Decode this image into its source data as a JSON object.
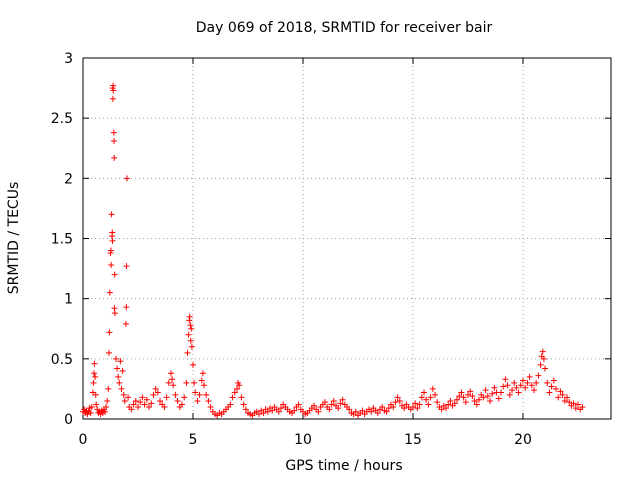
{
  "chart_data": {
    "type": "scatter",
    "title": "Day 069 of 2018, SRMTID for receiver bair",
    "xlabel": "GPS time / hours",
    "ylabel": "SRMTID / TECUs",
    "xlim": [
      0,
      24
    ],
    "ylim": [
      0,
      3
    ],
    "xticks": [
      0,
      5,
      10,
      15,
      20
    ],
    "yticks": [
      0,
      0.5,
      1,
      1.5,
      2,
      2.5,
      3
    ],
    "grid": true,
    "marker": "+",
    "color": "#ff0000",
    "series": [
      {
        "name": "SRMTID",
        "points": [
          [
            0.0,
            0.06
          ],
          [
            0.05,
            0.08
          ],
          [
            0.1,
            0.05
          ],
          [
            0.15,
            0.07
          ],
          [
            0.2,
            0.04
          ],
          [
            0.25,
            0.06
          ],
          [
            0.3,
            0.09
          ],
          [
            0.35,
            0.05
          ],
          [
            0.4,
            0.1
          ],
          [
            0.45,
            0.22
          ],
          [
            0.48,
            0.3
          ],
          [
            0.5,
            0.38
          ],
          [
            0.52,
            0.46
          ],
          [
            0.55,
            0.35
          ],
          [
            0.58,
            0.2
          ],
          [
            0.6,
            0.12
          ],
          [
            0.65,
            0.08
          ],
          [
            0.7,
            0.05
          ],
          [
            0.75,
            0.06
          ],
          [
            0.8,
            0.04
          ],
          [
            0.85,
            0.07
          ],
          [
            0.9,
            0.05
          ],
          [
            0.95,
            0.08
          ],
          [
            1.0,
            0.06
          ],
          [
            1.05,
            0.1
          ],
          [
            1.1,
            0.15
          ],
          [
            1.15,
            0.25
          ],
          [
            1.18,
            0.55
          ],
          [
            1.2,
            0.72
          ],
          [
            1.22,
            1.05
          ],
          [
            1.25,
            1.38
          ],
          [
            1.27,
            1.4
          ],
          [
            1.28,
            1.28
          ],
          [
            1.3,
            1.7
          ],
          [
            1.32,
            1.52
          ],
          [
            1.33,
            1.55
          ],
          [
            1.34,
            1.48
          ],
          [
            1.35,
            2.75
          ],
          [
            1.36,
            2.66
          ],
          [
            1.37,
            2.77
          ],
          [
            1.38,
            2.73
          ],
          [
            1.4,
            2.38
          ],
          [
            1.41,
            2.31
          ],
          [
            1.42,
            2.17
          ],
          [
            1.43,
            0.92
          ],
          [
            1.44,
            1.2
          ],
          [
            1.45,
            0.88
          ],
          [
            1.5,
            0.5
          ],
          [
            1.55,
            0.42
          ],
          [
            1.6,
            0.35
          ],
          [
            1.65,
            0.3
          ],
          [
            1.7,
            0.48
          ],
          [
            1.75,
            0.25
          ],
          [
            1.8,
            0.4
          ],
          [
            1.85,
            0.2
          ],
          [
            1.9,
            0.15
          ],
          [
            1.95,
            0.79
          ],
          [
            1.97,
            0.93
          ],
          [
            1.98,
            1.27
          ],
          [
            2.0,
            2.0
          ],
          [
            2.05,
            0.18
          ],
          [
            2.1,
            0.1
          ],
          [
            2.2,
            0.08
          ],
          [
            2.3,
            0.12
          ],
          [
            2.4,
            0.15
          ],
          [
            2.5,
            0.1
          ],
          [
            2.6,
            0.14
          ],
          [
            2.7,
            0.18
          ],
          [
            2.8,
            0.12
          ],
          [
            2.9,
            0.16
          ],
          [
            3.0,
            0.1
          ],
          [
            3.1,
            0.13
          ],
          [
            3.2,
            0.2
          ],
          [
            3.3,
            0.25
          ],
          [
            3.4,
            0.22
          ],
          [
            3.5,
            0.15
          ],
          [
            3.6,
            0.12
          ],
          [
            3.7,
            0.1
          ],
          [
            3.8,
            0.18
          ],
          [
            3.9,
            0.3
          ],
          [
            4.0,
            0.38
          ],
          [
            4.05,
            0.33
          ],
          [
            4.1,
            0.28
          ],
          [
            4.2,
            0.2
          ],
          [
            4.3,
            0.15
          ],
          [
            4.4,
            0.1
          ],
          [
            4.5,
            0.12
          ],
          [
            4.6,
            0.18
          ],
          [
            4.7,
            0.3
          ],
          [
            4.75,
            0.55
          ],
          [
            4.8,
            0.7
          ],
          [
            4.83,
            0.82
          ],
          [
            4.85,
            0.85
          ],
          [
            4.88,
            0.78
          ],
          [
            4.9,
            0.65
          ],
          [
            4.92,
            0.75
          ],
          [
            4.95,
            0.6
          ],
          [
            5.0,
            0.45
          ],
          [
            5.05,
            0.3
          ],
          [
            5.1,
            0.22
          ],
          [
            5.2,
            0.15
          ],
          [
            5.3,
            0.2
          ],
          [
            5.4,
            0.32
          ],
          [
            5.45,
            0.38
          ],
          [
            5.5,
            0.28
          ],
          [
            5.6,
            0.2
          ],
          [
            5.7,
            0.15
          ],
          [
            5.8,
            0.1
          ],
          [
            5.9,
            0.06
          ],
          [
            6.0,
            0.04
          ],
          [
            6.1,
            0.03
          ],
          [
            6.2,
            0.05
          ],
          [
            6.3,
            0.04
          ],
          [
            6.4,
            0.06
          ],
          [
            6.5,
            0.08
          ],
          [
            6.6,
            0.1
          ],
          [
            6.7,
            0.12
          ],
          [
            6.8,
            0.18
          ],
          [
            6.9,
            0.22
          ],
          [
            7.0,
            0.25
          ],
          [
            7.05,
            0.3
          ],
          [
            7.1,
            0.28
          ],
          [
            7.2,
            0.18
          ],
          [
            7.3,
            0.12
          ],
          [
            7.4,
            0.08
          ],
          [
            7.5,
            0.05
          ],
          [
            7.6,
            0.04
          ],
          [
            7.7,
            0.03
          ],
          [
            7.8,
            0.05
          ],
          [
            7.9,
            0.06
          ],
          [
            8.0,
            0.04
          ],
          [
            8.1,
            0.07
          ],
          [
            8.2,
            0.05
          ],
          [
            8.3,
            0.08
          ],
          [
            8.4,
            0.06
          ],
          [
            8.5,
            0.09
          ],
          [
            8.6,
            0.07
          ],
          [
            8.7,
            0.1
          ],
          [
            8.8,
            0.08
          ],
          [
            8.9,
            0.06
          ],
          [
            9.0,
            0.09
          ],
          [
            9.1,
            0.12
          ],
          [
            9.2,
            0.1
          ],
          [
            9.3,
            0.08
          ],
          [
            9.4,
            0.06
          ],
          [
            9.5,
            0.05
          ],
          [
            9.6,
            0.07
          ],
          [
            9.7,
            0.1
          ],
          [
            9.8,
            0.12
          ],
          [
            9.9,
            0.08
          ],
          [
            10.0,
            0.06
          ],
          [
            10.1,
            0.04
          ],
          [
            10.2,
            0.05
          ],
          [
            10.3,
            0.07
          ],
          [
            10.4,
            0.09
          ],
          [
            10.5,
            0.11
          ],
          [
            10.6,
            0.08
          ],
          [
            10.7,
            0.06
          ],
          [
            10.8,
            0.1
          ],
          [
            10.9,
            0.12
          ],
          [
            11.0,
            0.14
          ],
          [
            11.1,
            0.1
          ],
          [
            11.2,
            0.08
          ],
          [
            11.3,
            0.12
          ],
          [
            11.4,
            0.15
          ],
          [
            11.5,
            0.11
          ],
          [
            11.6,
            0.09
          ],
          [
            11.7,
            0.13
          ],
          [
            11.8,
            0.16
          ],
          [
            11.9,
            0.12
          ],
          [
            12.0,
            0.1
          ],
          [
            12.1,
            0.08
          ],
          [
            12.2,
            0.05
          ],
          [
            12.3,
            0.04
          ],
          [
            12.4,
            0.06
          ],
          [
            12.5,
            0.03
          ],
          [
            12.6,
            0.05
          ],
          [
            12.7,
            0.07
          ],
          [
            12.8,
            0.04
          ],
          [
            12.9,
            0.06
          ],
          [
            13.0,
            0.08
          ],
          [
            13.1,
            0.06
          ],
          [
            13.2,
            0.09
          ],
          [
            13.3,
            0.07
          ],
          [
            13.4,
            0.05
          ],
          [
            13.5,
            0.08
          ],
          [
            13.6,
            0.1
          ],
          [
            13.7,
            0.07
          ],
          [
            13.8,
            0.06
          ],
          [
            13.9,
            0.09
          ],
          [
            14.0,
            0.12
          ],
          [
            14.1,
            0.1
          ],
          [
            14.2,
            0.14
          ],
          [
            14.3,
            0.18
          ],
          [
            14.4,
            0.15
          ],
          [
            14.5,
            0.11
          ],
          [
            14.6,
            0.09
          ],
          [
            14.7,
            0.12
          ],
          [
            14.8,
            0.1
          ],
          [
            14.9,
            0.08
          ],
          [
            15.0,
            0.1
          ],
          [
            15.1,
            0.13
          ],
          [
            15.2,
            0.09
          ],
          [
            15.3,
            0.12
          ],
          [
            15.4,
            0.18
          ],
          [
            15.5,
            0.22
          ],
          [
            15.6,
            0.16
          ],
          [
            15.7,
            0.12
          ],
          [
            15.8,
            0.18
          ],
          [
            15.9,
            0.25
          ],
          [
            16.0,
            0.2
          ],
          [
            16.1,
            0.14
          ],
          [
            16.2,
            0.1
          ],
          [
            16.3,
            0.08
          ],
          [
            16.4,
            0.11
          ],
          [
            16.5,
            0.09
          ],
          [
            16.6,
            0.12
          ],
          [
            16.7,
            0.15
          ],
          [
            16.8,
            0.11
          ],
          [
            16.9,
            0.13
          ],
          [
            17.0,
            0.16
          ],
          [
            17.1,
            0.19
          ],
          [
            17.2,
            0.22
          ],
          [
            17.3,
            0.18
          ],
          [
            17.4,
            0.14
          ],
          [
            17.5,
            0.2
          ],
          [
            17.6,
            0.23
          ],
          [
            17.7,
            0.19
          ],
          [
            17.8,
            0.15
          ],
          [
            17.9,
            0.12
          ],
          [
            18.0,
            0.16
          ],
          [
            18.1,
            0.2
          ],
          [
            18.2,
            0.18
          ],
          [
            18.3,
            0.24
          ],
          [
            18.4,
            0.19
          ],
          [
            18.5,
            0.15
          ],
          [
            18.6,
            0.21
          ],
          [
            18.7,
            0.26
          ],
          [
            18.8,
            0.22
          ],
          [
            18.9,
            0.17
          ],
          [
            19.0,
            0.22
          ],
          [
            19.1,
            0.27
          ],
          [
            19.2,
            0.33
          ],
          [
            19.3,
            0.28
          ],
          [
            19.4,
            0.2
          ],
          [
            19.5,
            0.24
          ],
          [
            19.6,
            0.3
          ],
          [
            19.7,
            0.26
          ],
          [
            19.8,
            0.22
          ],
          [
            19.9,
            0.28
          ],
          [
            20.0,
            0.32
          ],
          [
            20.1,
            0.26
          ],
          [
            20.2,
            0.3
          ],
          [
            20.3,
            0.35
          ],
          [
            20.4,
            0.28
          ],
          [
            20.5,
            0.24
          ],
          [
            20.6,
            0.3
          ],
          [
            20.7,
            0.36
          ],
          [
            20.8,
            0.45
          ],
          [
            20.85,
            0.52
          ],
          [
            20.9,
            0.56
          ],
          [
            20.95,
            0.5
          ],
          [
            21.0,
            0.42
          ],
          [
            21.1,
            0.3
          ],
          [
            21.2,
            0.22
          ],
          [
            21.3,
            0.27
          ],
          [
            21.4,
            0.32
          ],
          [
            21.5,
            0.25
          ],
          [
            21.6,
            0.18
          ],
          [
            21.7,
            0.23
          ],
          [
            21.8,
            0.2
          ],
          [
            21.9,
            0.15
          ],
          [
            22.0,
            0.18
          ],
          [
            22.1,
            0.14
          ],
          [
            22.2,
            0.11
          ],
          [
            22.3,
            0.13
          ],
          [
            22.4,
            0.09
          ],
          [
            22.5,
            0.12
          ],
          [
            22.6,
            0.08
          ],
          [
            22.7,
            0.1
          ]
        ]
      }
    ]
  }
}
